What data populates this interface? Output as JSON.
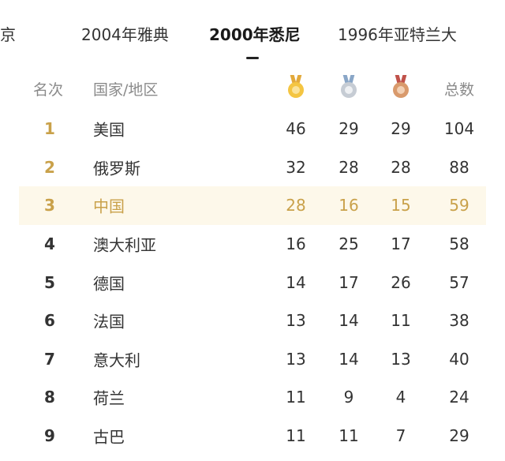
{
  "tabs": [
    {
      "label": "京",
      "active": false
    },
    {
      "label": "2004年雅典",
      "active": false
    },
    {
      "label": "2000年悉尼",
      "active": true
    },
    {
      "label": "1996年亚特兰大",
      "active": false
    }
  ],
  "header": {
    "rank": "名次",
    "country": "国家/地区",
    "total": "总数",
    "medal_icons": [
      "gold-medal-icon",
      "silver-medal-icon",
      "bronze-medal-icon"
    ]
  },
  "colors": {
    "highlight_bg": "#fdf8ea",
    "highlight_text": "#c9a14a"
  },
  "rows": [
    {
      "rank": "1",
      "country": "美国",
      "gold": "46",
      "silver": "29",
      "bronze": "29",
      "total": "104"
    },
    {
      "rank": "2",
      "country": "俄罗斯",
      "gold": "32",
      "silver": "28",
      "bronze": "28",
      "total": "88"
    },
    {
      "rank": "3",
      "country": "中国",
      "gold": "28",
      "silver": "16",
      "bronze": "15",
      "total": "59"
    },
    {
      "rank": "4",
      "country": "澳大利亚",
      "gold": "16",
      "silver": "25",
      "bronze": "17",
      "total": "58"
    },
    {
      "rank": "5",
      "country": "德国",
      "gold": "14",
      "silver": "17",
      "bronze": "26",
      "total": "57"
    },
    {
      "rank": "6",
      "country": "法国",
      "gold": "13",
      "silver": "14",
      "bronze": "11",
      "total": "38"
    },
    {
      "rank": "7",
      "country": "意大利",
      "gold": "13",
      "silver": "14",
      "bronze": "13",
      "total": "40"
    },
    {
      "rank": "8",
      "country": "荷兰",
      "gold": "11",
      "silver": "9",
      "bronze": "4",
      "total": "24"
    },
    {
      "rank": "9",
      "country": "古巴",
      "gold": "11",
      "silver": "11",
      "bronze": "7",
      "total": "29"
    }
  ]
}
